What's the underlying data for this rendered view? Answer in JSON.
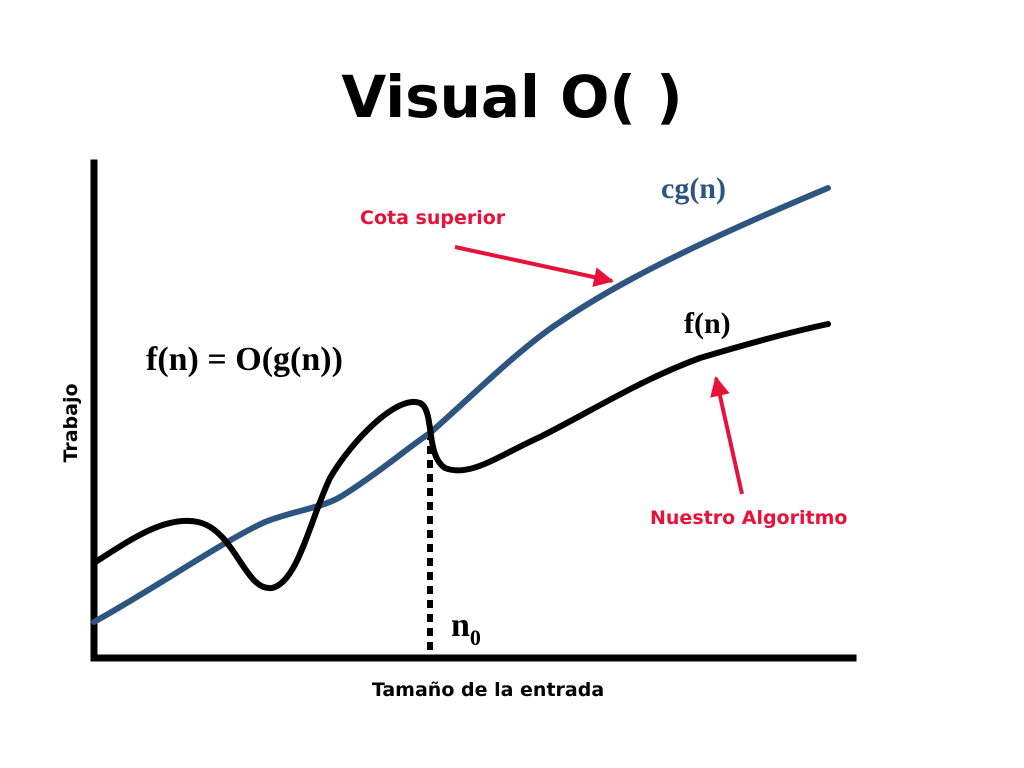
{
  "title": "Visual O( )",
  "colors": {
    "upper_bound_curve": "#2e5580",
    "algorithm_curve": "#000000",
    "annotation": "#e8113a",
    "axes": "#000000",
    "background": "#ffffff"
  },
  "labels": {
    "cg": "cg(n)",
    "f": "f(n)",
    "equation": "f(n) = O(g(n))",
    "n0_base": "n",
    "n0_sub": "0",
    "upper_bound_note": "Cota superior",
    "algorithm_note": "Nuestro Algoritmo",
    "y_axis": "Trabajo",
    "x_axis": "Tamaño de la entrada"
  },
  "icons": {
    "upper_bound_arrow": "arrow-icon",
    "algorithm_arrow": "arrow-icon"
  }
}
